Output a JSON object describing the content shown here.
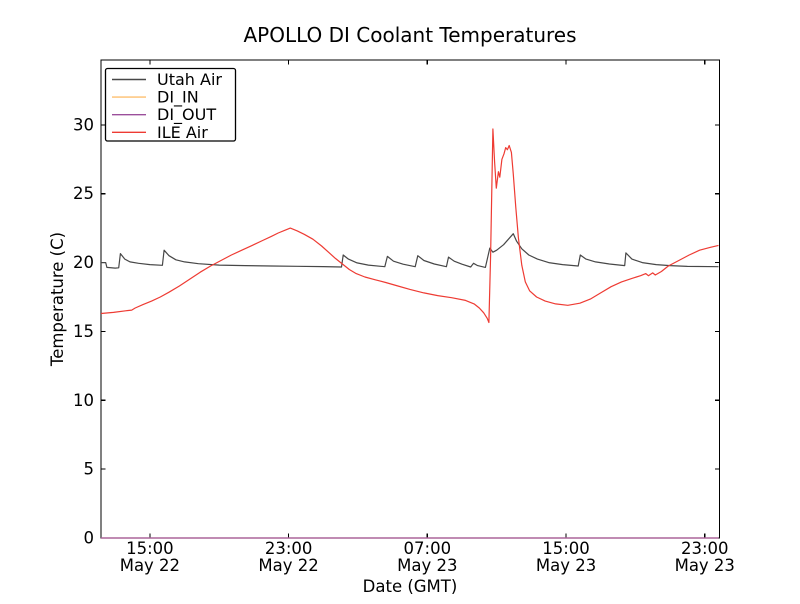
{
  "figure": {
    "background": "#ffffff",
    "spine_color": "#000000"
  },
  "chart_data": {
    "type": "line",
    "title": "APOLLO DI Coolant Temperatures",
    "xlabel": "Date (GMT)",
    "ylabel": "Temperature (C)",
    "grid": false,
    "legend_position": "upper left",
    "x_unit": "hours since May 22 00:00 GMT",
    "xlim": [
      12.18,
      47.85
    ],
    "ylim": [
      0,
      34.71
    ],
    "yticks": [
      0,
      5,
      10,
      15,
      20,
      25,
      30
    ],
    "xticks": [
      {
        "t": 15,
        "line1": "15:00",
        "line2": "May 22"
      },
      {
        "t": 23,
        "line1": "23:00",
        "line2": "May 22"
      },
      {
        "t": 31,
        "line1": "07:00",
        "line2": "May 23"
      },
      {
        "t": 39,
        "line1": "15:00",
        "line2": "May 23"
      },
      {
        "t": 47,
        "line1": "23:00",
        "line2": "May 23"
      }
    ],
    "series": [
      {
        "name": "Utah Air",
        "color": "#474747",
        "points": [
          [
            12.18,
            20.0
          ],
          [
            12.45,
            20.0
          ],
          [
            12.52,
            19.65
          ],
          [
            13.0,
            19.6
          ],
          [
            13.2,
            19.62
          ],
          [
            13.3,
            20.65
          ],
          [
            13.55,
            20.25
          ],
          [
            13.85,
            20.05
          ],
          [
            14.35,
            19.95
          ],
          [
            15.0,
            19.85
          ],
          [
            15.72,
            19.8
          ],
          [
            15.82,
            20.9
          ],
          [
            16.1,
            20.5
          ],
          [
            16.5,
            20.2
          ],
          [
            17.0,
            20.05
          ],
          [
            17.8,
            19.92
          ],
          [
            19.0,
            19.82
          ],
          [
            20.5,
            19.78
          ],
          [
            22.0,
            19.75
          ],
          [
            23.5,
            19.73
          ],
          [
            25.0,
            19.71
          ],
          [
            26.05,
            19.68
          ],
          [
            26.15,
            20.55
          ],
          [
            26.45,
            20.25
          ],
          [
            26.95,
            19.98
          ],
          [
            27.6,
            19.82
          ],
          [
            28.55,
            19.7
          ],
          [
            28.7,
            20.45
          ],
          [
            29.05,
            20.1
          ],
          [
            29.6,
            19.88
          ],
          [
            30.3,
            19.7
          ],
          [
            30.45,
            20.5
          ],
          [
            30.8,
            20.15
          ],
          [
            31.4,
            19.9
          ],
          [
            32.1,
            19.7
          ],
          [
            32.22,
            20.4
          ],
          [
            32.55,
            20.1
          ],
          [
            33.0,
            19.88
          ],
          [
            33.5,
            19.68
          ],
          [
            33.66,
            19.95
          ],
          [
            33.9,
            19.78
          ],
          [
            34.35,
            19.65
          ],
          [
            34.6,
            21.05
          ],
          [
            34.78,
            20.75
          ],
          [
            35.0,
            20.9
          ],
          [
            35.4,
            21.3
          ],
          [
            35.96,
            22.1
          ],
          [
            36.15,
            21.55
          ],
          [
            36.45,
            21.0
          ],
          [
            36.85,
            20.55
          ],
          [
            37.35,
            20.25
          ],
          [
            38.0,
            20.0
          ],
          [
            38.8,
            19.85
          ],
          [
            39.7,
            19.75
          ],
          [
            39.82,
            20.55
          ],
          [
            40.15,
            20.25
          ],
          [
            40.7,
            20.05
          ],
          [
            41.5,
            19.9
          ],
          [
            42.38,
            19.78
          ],
          [
            42.45,
            20.7
          ],
          [
            42.8,
            20.25
          ],
          [
            43.4,
            20.0
          ],
          [
            44.2,
            19.85
          ],
          [
            45.0,
            19.78
          ],
          [
            46.0,
            19.72
          ],
          [
            47.79,
            19.7
          ]
        ]
      },
      {
        "name": "DI_IN",
        "color": "#fdbf6f",
        "points": [
          [
            12.18,
            0
          ],
          [
            47.79,
            0
          ]
        ]
      },
      {
        "name": "DI_OUT",
        "color": "#9b4f9b",
        "points": [
          [
            12.18,
            0
          ],
          [
            47.79,
            0
          ]
        ]
      },
      {
        "name": "ILE Air",
        "color": "#ee3b33",
        "points": [
          [
            12.18,
            16.3
          ],
          [
            12.9,
            16.38
          ],
          [
            13.6,
            16.5
          ],
          [
            13.95,
            16.55
          ],
          [
            14.15,
            16.7
          ],
          [
            14.6,
            16.95
          ],
          [
            15.1,
            17.2
          ],
          [
            15.6,
            17.5
          ],
          [
            16.1,
            17.85
          ],
          [
            16.7,
            18.3
          ],
          [
            17.3,
            18.8
          ],
          [
            17.9,
            19.3
          ],
          [
            18.5,
            19.75
          ],
          [
            19.1,
            20.15
          ],
          [
            19.7,
            20.55
          ],
          [
            20.3,
            20.9
          ],
          [
            20.9,
            21.25
          ],
          [
            21.5,
            21.6
          ],
          [
            22.0,
            21.9
          ],
          [
            22.4,
            22.15
          ],
          [
            22.8,
            22.35
          ],
          [
            23.1,
            22.5
          ],
          [
            23.5,
            22.3
          ],
          [
            23.9,
            22.05
          ],
          [
            24.4,
            21.7
          ],
          [
            24.9,
            21.2
          ],
          [
            25.3,
            20.75
          ],
          [
            25.7,
            20.3
          ],
          [
            26.1,
            19.9
          ],
          [
            26.5,
            19.5
          ],
          [
            26.9,
            19.2
          ],
          [
            27.4,
            18.95
          ],
          [
            28.0,
            18.75
          ],
          [
            28.6,
            18.55
          ],
          [
            29.3,
            18.3
          ],
          [
            30.0,
            18.05
          ],
          [
            30.8,
            17.8
          ],
          [
            31.6,
            17.6
          ],
          [
            32.4,
            17.45
          ],
          [
            33.2,
            17.25
          ],
          [
            33.7,
            17.0
          ],
          [
            34.0,
            16.7
          ],
          [
            34.25,
            16.35
          ],
          [
            34.45,
            15.95
          ],
          [
            34.55,
            15.65
          ],
          [
            34.65,
            20.5
          ],
          [
            34.78,
            29.7
          ],
          [
            34.88,
            27.3
          ],
          [
            34.98,
            25.4
          ],
          [
            35.1,
            26.6
          ],
          [
            35.18,
            26.2
          ],
          [
            35.3,
            27.5
          ],
          [
            35.42,
            27.9
          ],
          [
            35.52,
            28.35
          ],
          [
            35.62,
            28.2
          ],
          [
            35.72,
            28.5
          ],
          [
            35.85,
            28.0
          ],
          [
            35.95,
            26.5
          ],
          [
            36.1,
            24.0
          ],
          [
            36.25,
            21.8
          ],
          [
            36.45,
            19.8
          ],
          [
            36.65,
            18.6
          ],
          [
            36.9,
            17.95
          ],
          [
            37.3,
            17.5
          ],
          [
            37.8,
            17.2
          ],
          [
            38.4,
            17.0
          ],
          [
            39.1,
            16.9
          ],
          [
            39.8,
            17.05
          ],
          [
            40.4,
            17.35
          ],
          [
            41.0,
            17.8
          ],
          [
            41.6,
            18.25
          ],
          [
            42.2,
            18.6
          ],
          [
            42.8,
            18.85
          ],
          [
            43.3,
            19.05
          ],
          [
            43.6,
            19.2
          ],
          [
            43.75,
            19.05
          ],
          [
            44.0,
            19.25
          ],
          [
            44.15,
            19.1
          ],
          [
            44.5,
            19.35
          ],
          [
            44.9,
            19.75
          ],
          [
            45.5,
            20.15
          ],
          [
            46.1,
            20.55
          ],
          [
            46.7,
            20.9
          ],
          [
            47.3,
            21.1
          ],
          [
            47.79,
            21.25
          ]
        ]
      }
    ]
  }
}
